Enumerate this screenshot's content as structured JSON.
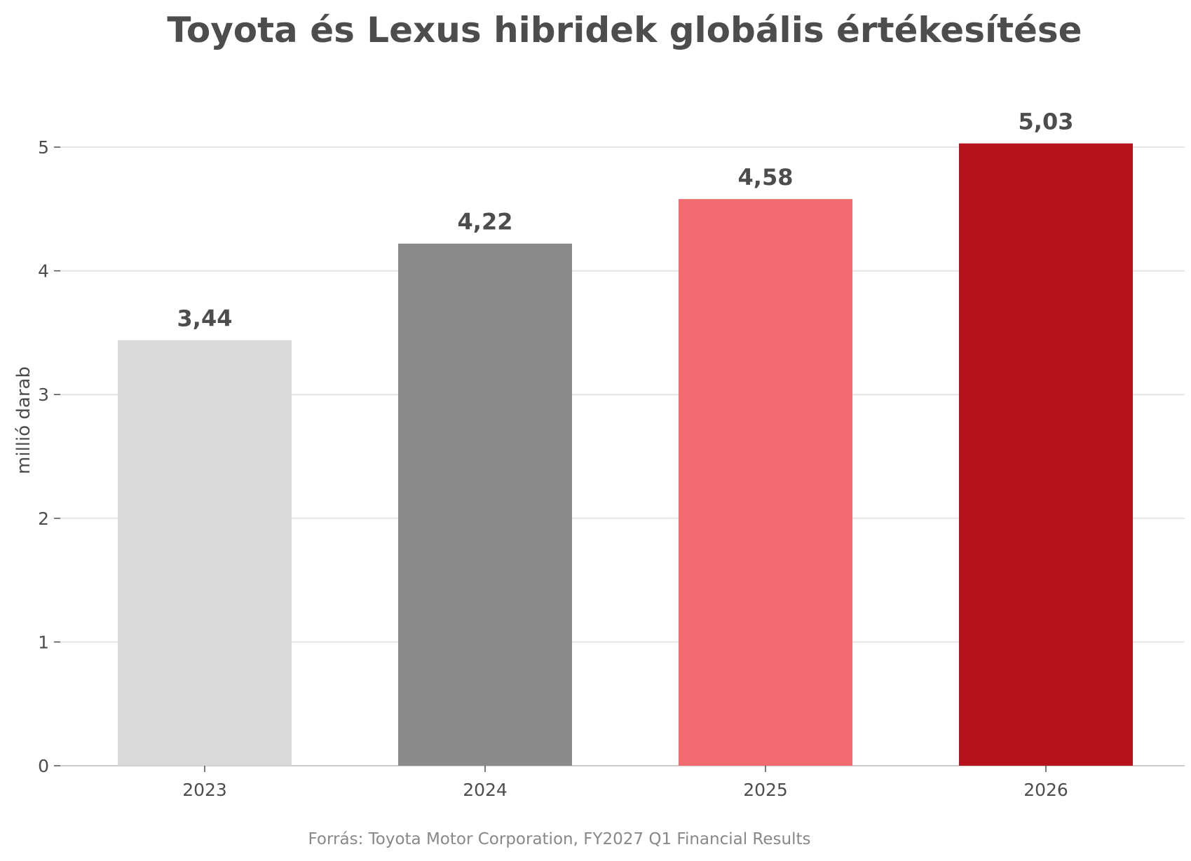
{
  "chart_data": {
    "type": "bar",
    "title": "Toyota és Lexus hibridek globális értékesítése",
    "ylabel": "millió darab",
    "xlabel": "",
    "categories": [
      "2023",
      "2024",
      "2025",
      "2026"
    ],
    "values": [
      3.44,
      4.22,
      4.58,
      5.03
    ],
    "value_labels": [
      "3,44",
      "4,22",
      "4,58",
      "5,03"
    ],
    "colors": [
      "#d9d9d9",
      "#8a8a8a",
      "#f26b70",
      "#b5121b"
    ],
    "ylim": [
      0,
      5.4
    ],
    "yticks": [
      0,
      1,
      2,
      3,
      4,
      5
    ],
    "grid": true,
    "legend": "none"
  },
  "source": "Forrás: Toyota Motor Corporation, FY2027 Q1 Financial Results"
}
